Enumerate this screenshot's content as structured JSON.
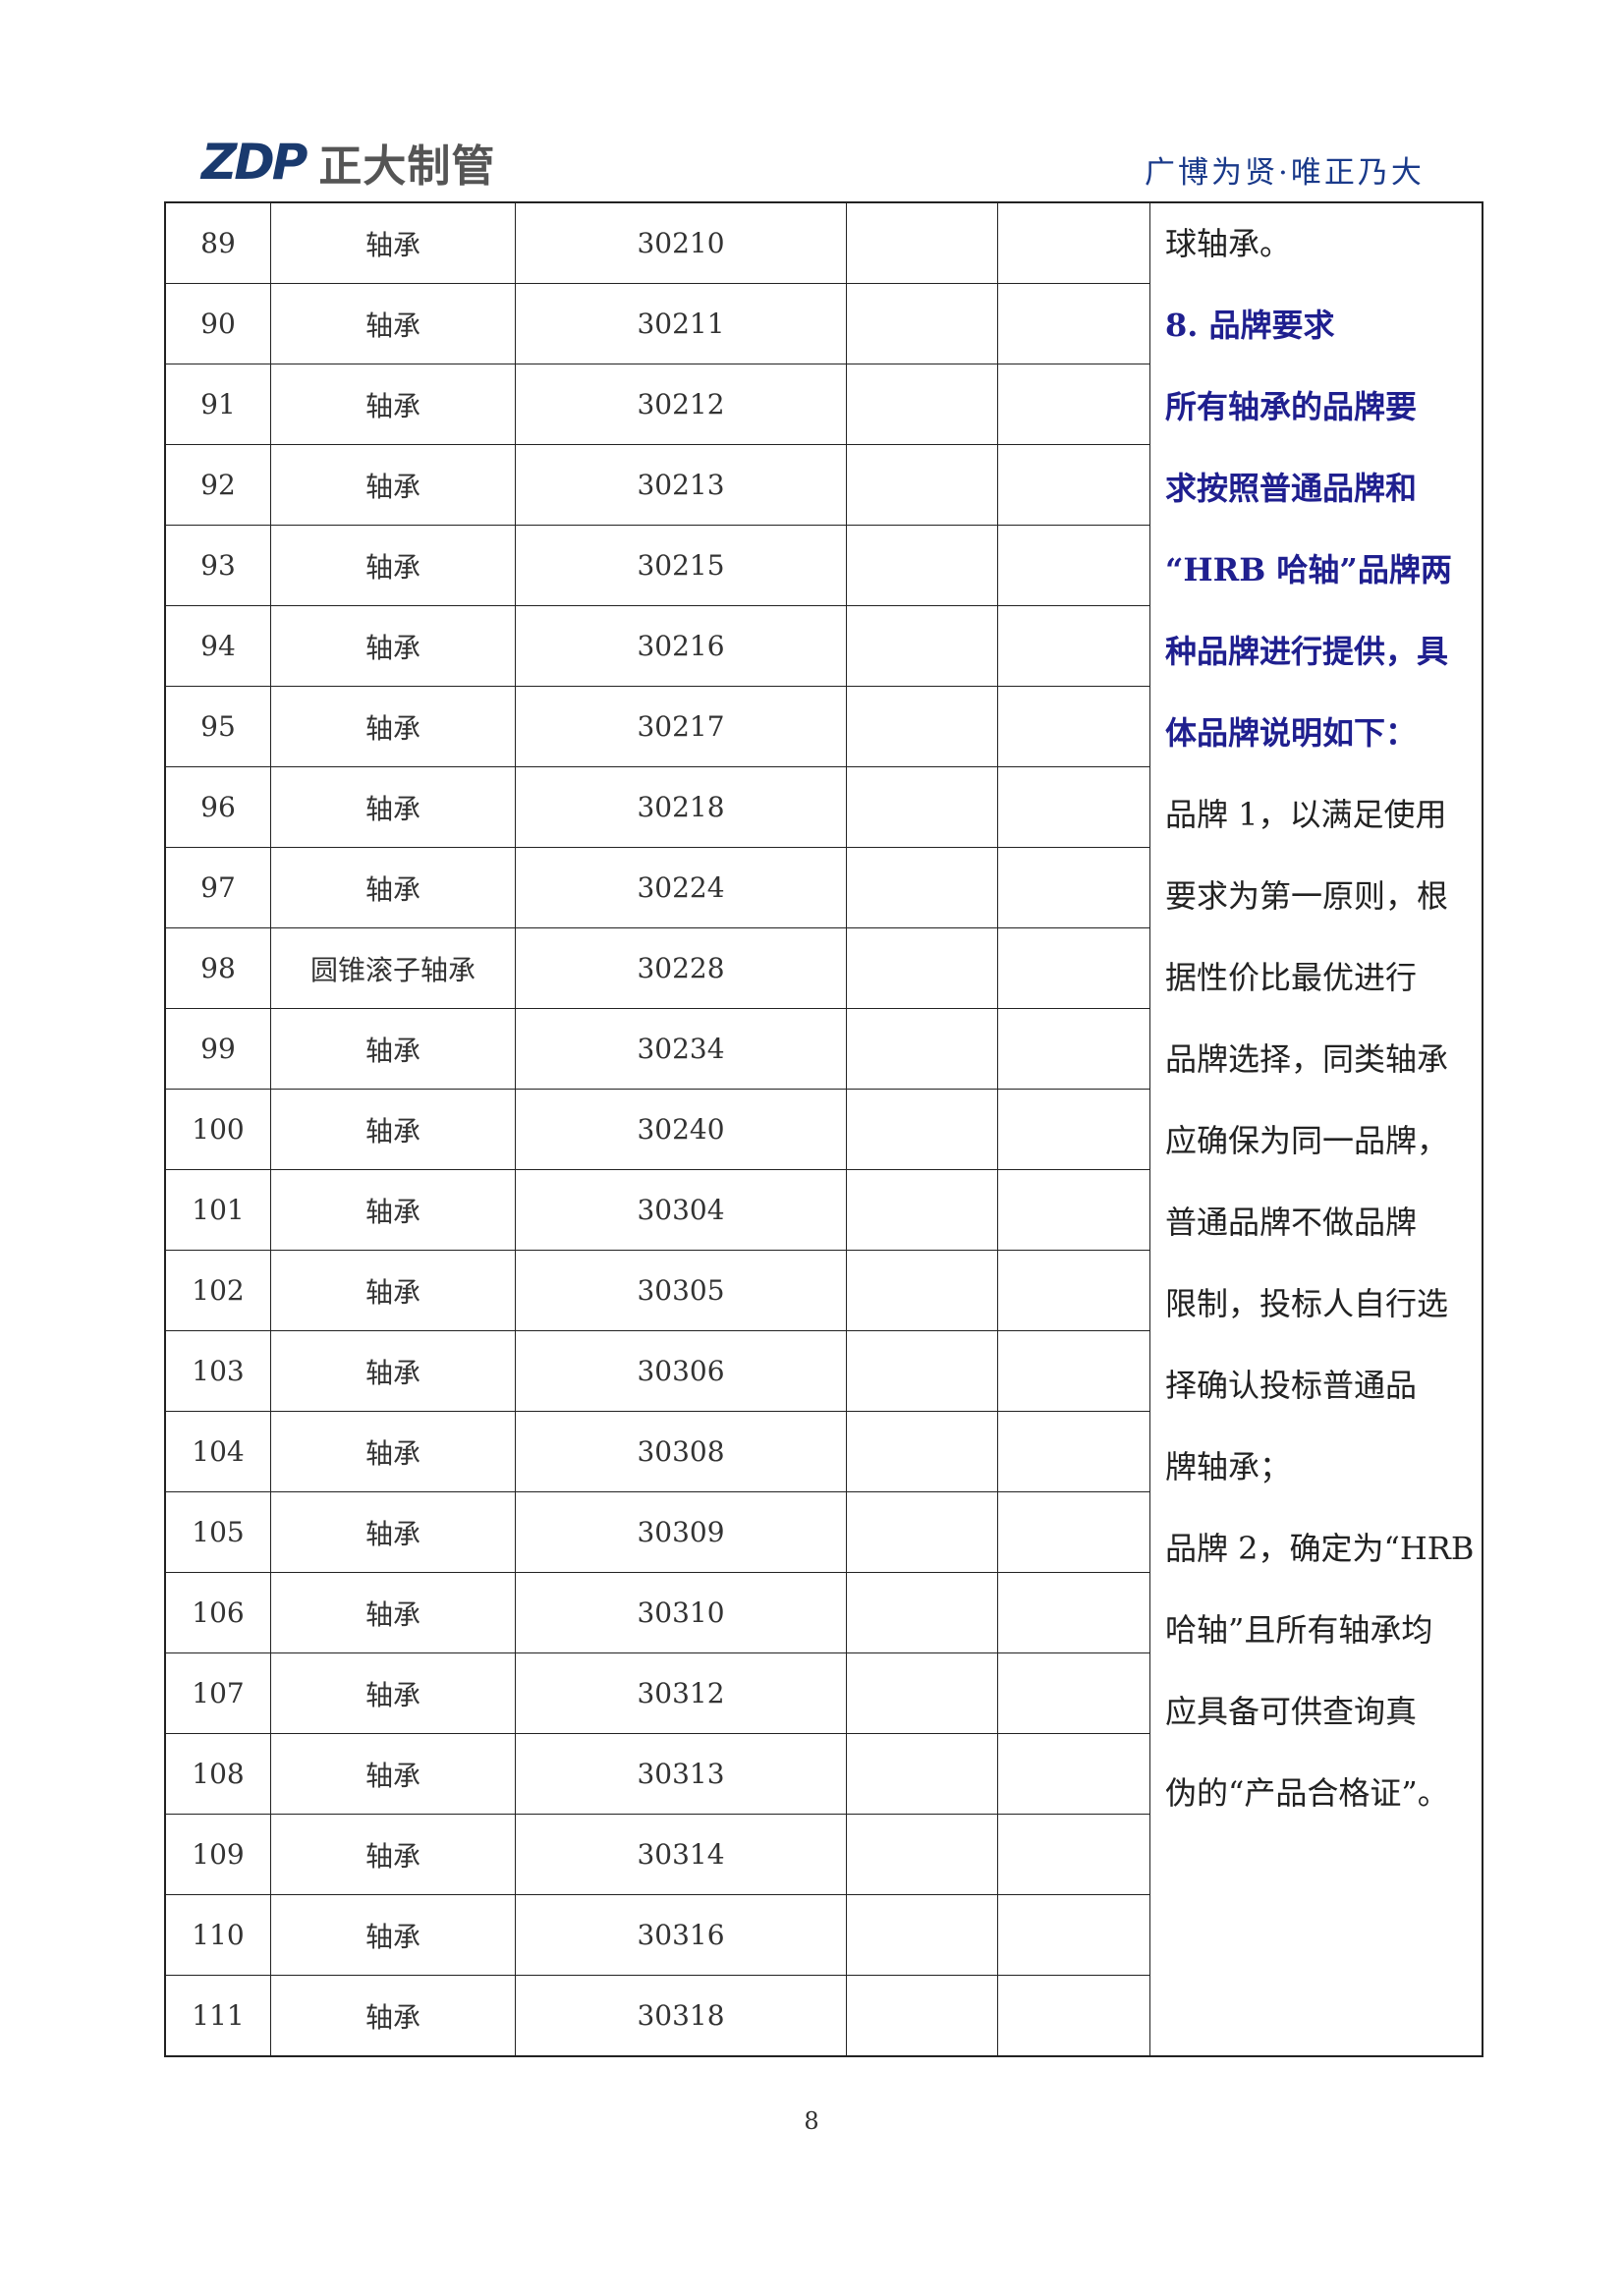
{
  "header": {
    "logo_mark": "ZDP",
    "logo_text": "正大制管",
    "tagline": "广博为贤·唯正乃大",
    "brand_color": "#1a3a6e"
  },
  "table": {
    "rows": [
      {
        "no": "89",
        "name": "轴承",
        "model": "30210"
      },
      {
        "no": "90",
        "name": "轴承",
        "model": "30211"
      },
      {
        "no": "91",
        "name": "轴承",
        "model": "30212"
      },
      {
        "no": "92",
        "name": "轴承",
        "model": "30213"
      },
      {
        "no": "93",
        "name": "轴承",
        "model": "30215"
      },
      {
        "no": "94",
        "name": "轴承",
        "model": "30216"
      },
      {
        "no": "95",
        "name": "轴承",
        "model": "30217"
      },
      {
        "no": "96",
        "name": "轴承",
        "model": "30218"
      },
      {
        "no": "97",
        "name": "轴承",
        "model": "30224"
      },
      {
        "no": "98",
        "name": "圆锥滚子轴承",
        "model": "30228"
      },
      {
        "no": "99",
        "name": "轴承",
        "model": "30234"
      },
      {
        "no": "100",
        "name": "轴承",
        "model": "30240"
      },
      {
        "no": "101",
        "name": "轴承",
        "model": "30304"
      },
      {
        "no": "102",
        "name": "轴承",
        "model": "30305"
      },
      {
        "no": "103",
        "name": "轴承",
        "model": "30306"
      },
      {
        "no": "104",
        "name": "轴承",
        "model": "30308"
      },
      {
        "no": "105",
        "name": "轴承",
        "model": "30309"
      },
      {
        "no": "106",
        "name": "轴承",
        "model": "30310"
      },
      {
        "no": "107",
        "name": "轴承",
        "model": "30312"
      },
      {
        "no": "108",
        "name": "轴承",
        "model": "30313"
      },
      {
        "no": "109",
        "name": "轴承",
        "model": "30314"
      },
      {
        "no": "110",
        "name": "轴承",
        "model": "30316"
      },
      {
        "no": "111",
        "name": "轴承",
        "model": "30318"
      }
    ]
  },
  "notes": {
    "lines": [
      {
        "text": "球轴承。",
        "bold": false
      },
      {
        "text": "8. 品牌要求",
        "bold": true
      },
      {
        "text": "所有轴承的品牌要",
        "bold": true
      },
      {
        "text": "求按照普通品牌和",
        "bold": true
      },
      {
        "text": "“HRB 哈轴”品牌两",
        "bold": true
      },
      {
        "text": "种品牌进行提供，具",
        "bold": true
      },
      {
        "text": "体品牌说明如下：",
        "bold": true
      },
      {
        "text": "品牌 1，以满足使用",
        "bold": false
      },
      {
        "text": "要求为第一原则，根",
        "bold": false
      },
      {
        "text": "据性价比最优进行",
        "bold": false
      },
      {
        "text": "品牌选择，同类轴承",
        "bold": false
      },
      {
        "text": "应确保为同一品牌，",
        "bold": false
      },
      {
        "text": "普通品牌不做品牌",
        "bold": false
      },
      {
        "text": "限制，投标人自行选",
        "bold": false
      },
      {
        "text": "择确认投标普通品",
        "bold": false
      },
      {
        "text": "牌轴承；",
        "bold": false
      },
      {
        "text": "品牌 2，确定为“HRB",
        "bold": false
      },
      {
        "text": "哈轴”且所有轴承均",
        "bold": false
      },
      {
        "text": "应具备可供查询真",
        "bold": false
      },
      {
        "text": "伪的“产品合格证”。",
        "bold": false
      }
    ],
    "highlight_color": "#1f1f8f"
  },
  "footer": {
    "page_number": "8"
  }
}
